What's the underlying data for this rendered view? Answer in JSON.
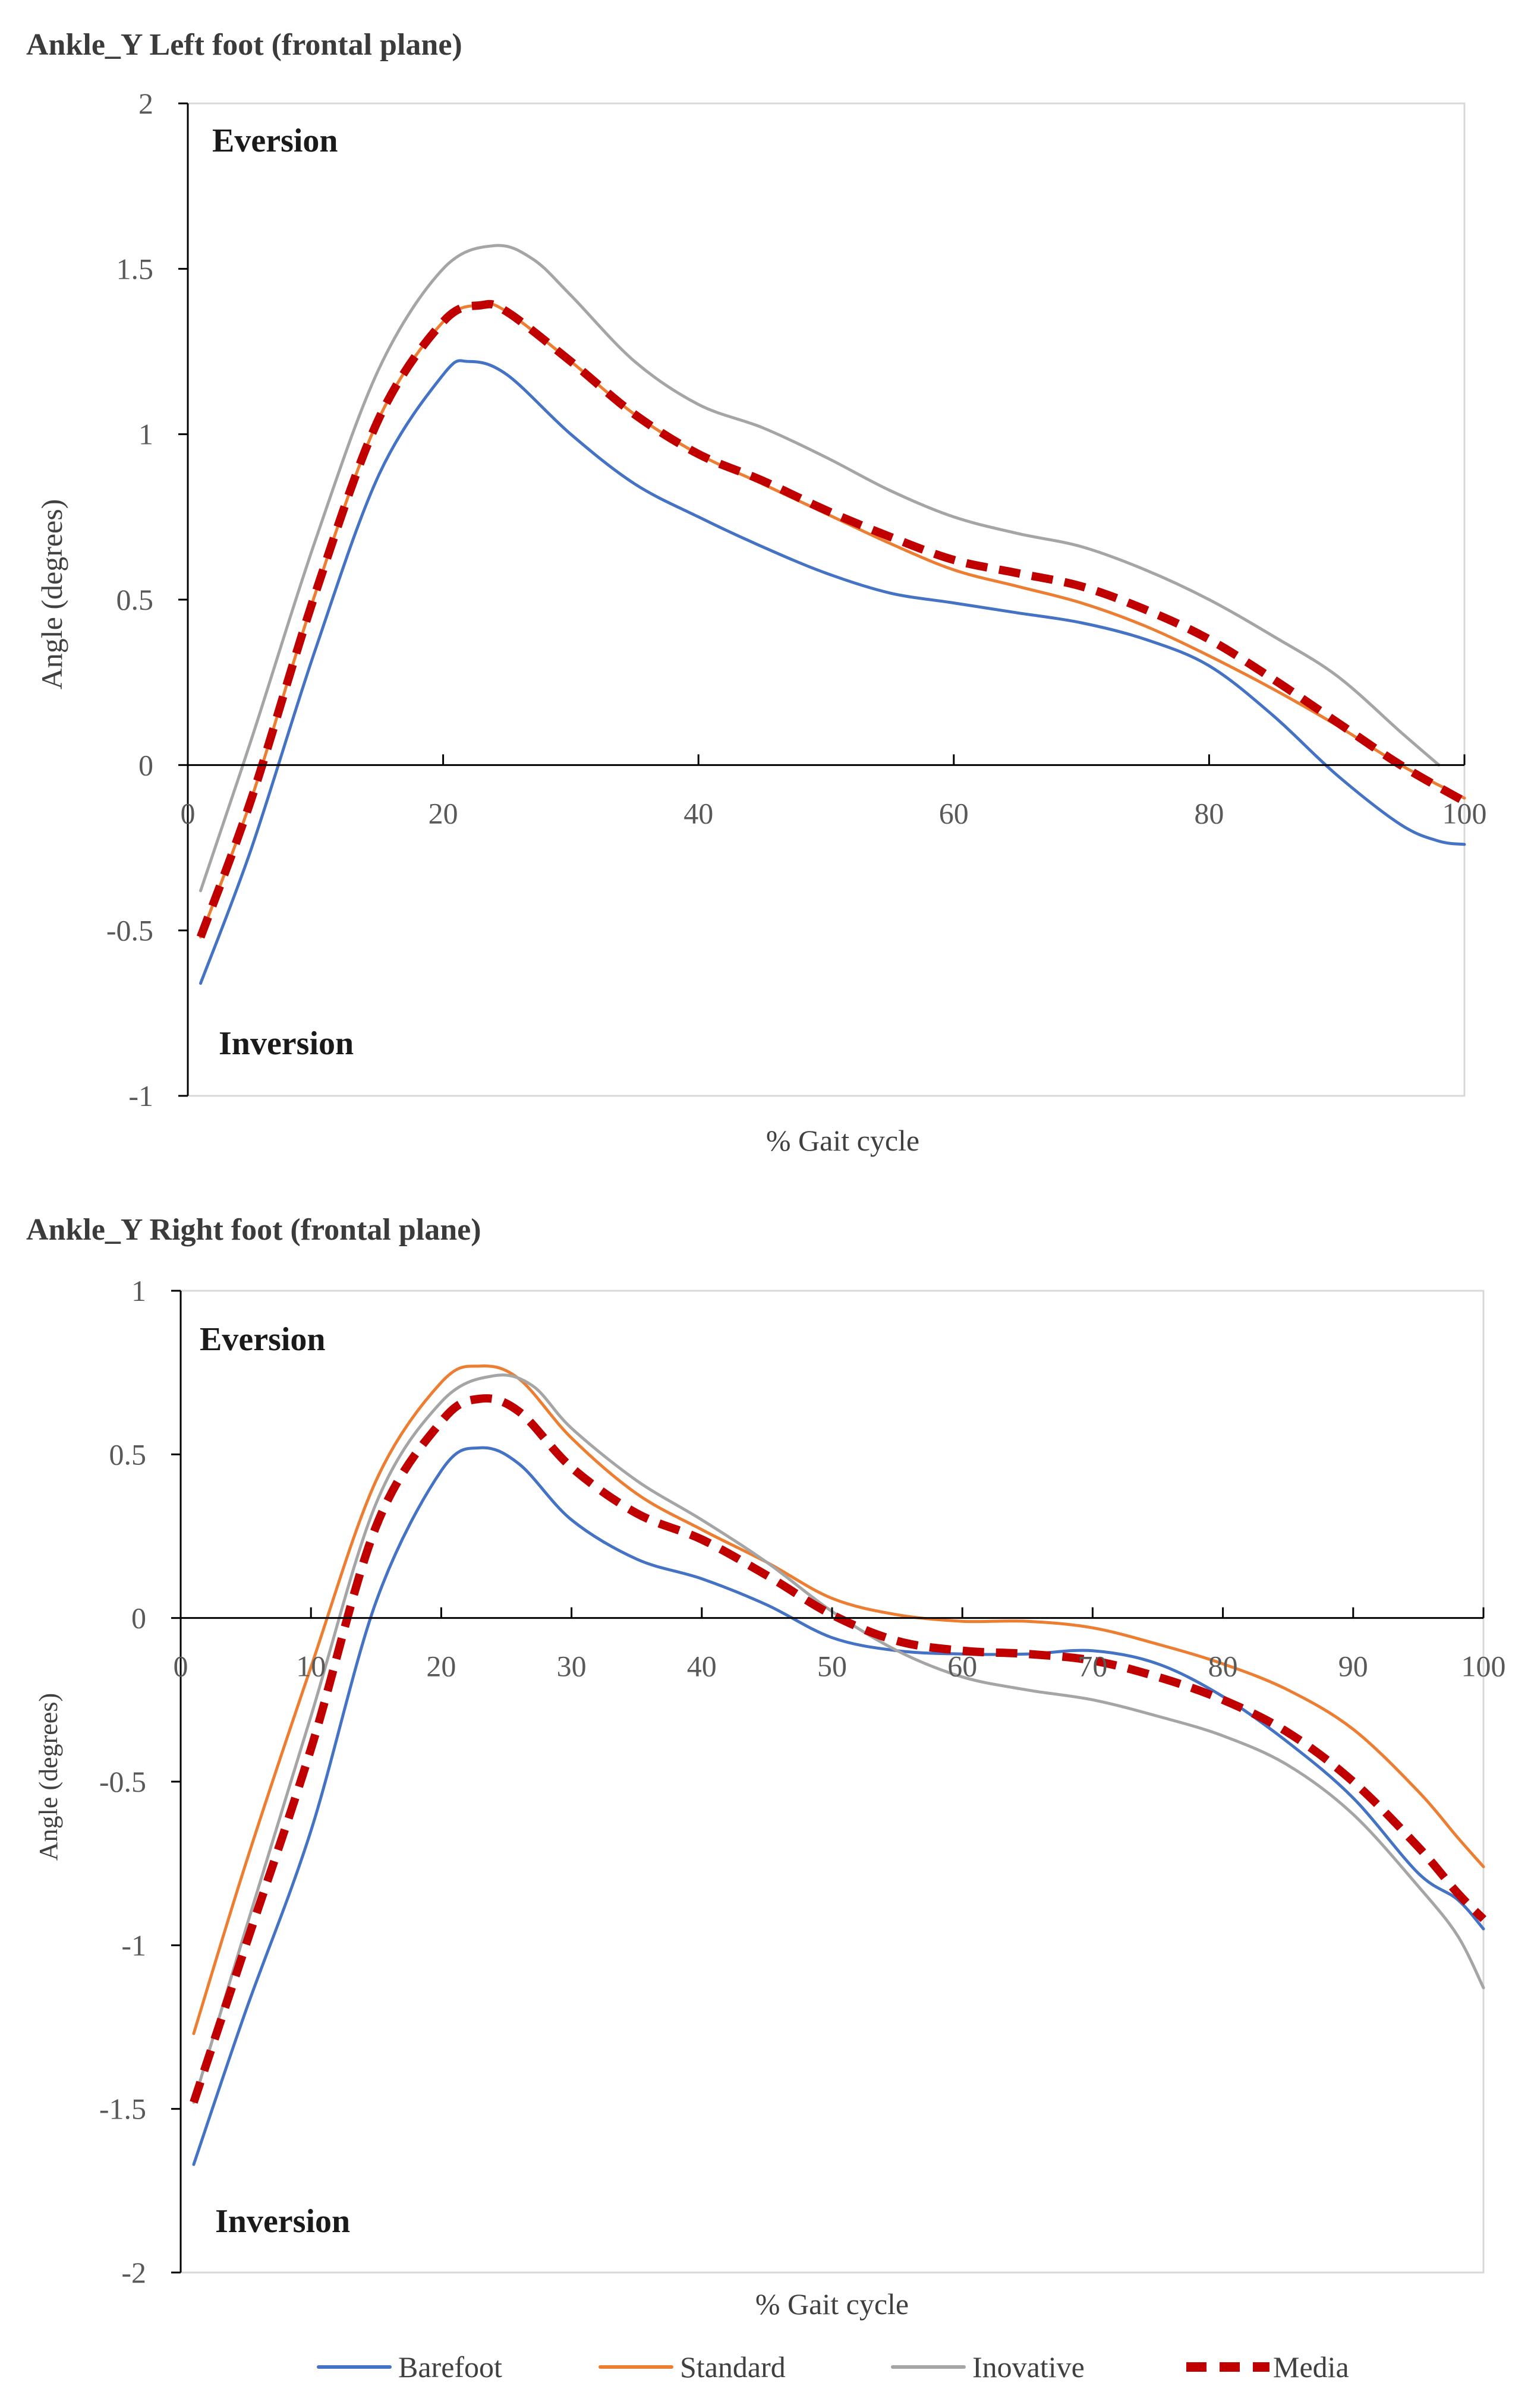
{
  "chart_data": [
    {
      "type": "line",
      "title": "Ankle_Y Left foot (frontal plane)",
      "xlabel": "% Gait cycle",
      "ylabel": "Angle (degrees)",
      "xlim": [
        0,
        100
      ],
      "ylim": [
        -1,
        2
      ],
      "xticks": [
        0,
        20,
        40,
        60,
        80,
        100
      ],
      "yticks": [
        2,
        1.5,
        1,
        0.5,
        0,
        -0.5,
        -1
      ],
      "grid": false,
      "annotations": [
        {
          "text": "Eversion",
          "x": 2,
          "y": 1.9
        },
        {
          "text": "Inversion",
          "x": 2,
          "y": -0.84
        }
      ],
      "series": [
        {
          "name": "Barefoot",
          "color": "#4472c4",
          "dashed": false,
          "x": [
            1,
            5,
            10,
            15,
            20,
            22,
            25,
            30,
            35,
            40,
            45,
            50,
            55,
            60,
            65,
            70,
            75,
            80,
            85,
            90,
            95,
            98,
            100
          ],
          "y": [
            -0.66,
            -0.25,
            0.35,
            0.88,
            1.18,
            1.22,
            1.18,
            1.0,
            0.85,
            0.75,
            0.66,
            0.58,
            0.52,
            0.49,
            0.46,
            0.43,
            0.38,
            0.3,
            0.15,
            -0.03,
            -0.18,
            -0.23,
            -0.24
          ]
        },
        {
          "name": "Standard",
          "color": "#ed7d31",
          "dashed": false,
          "x": [
            1,
            5,
            10,
            15,
            20,
            23,
            25,
            30,
            35,
            40,
            45,
            50,
            55,
            60,
            65,
            70,
            75,
            80,
            85,
            90,
            95,
            100
          ],
          "y": [
            -0.52,
            -0.1,
            0.52,
            1.05,
            1.34,
            1.39,
            1.37,
            1.22,
            1.06,
            0.94,
            0.85,
            0.76,
            0.67,
            0.59,
            0.54,
            0.49,
            0.42,
            0.33,
            0.23,
            0.12,
            0.0,
            -0.1
          ]
        },
        {
          "name": "Inovative",
          "color": "#a5a5a5",
          "dashed": false,
          "x": [
            1,
            5,
            10,
            15,
            20,
            24,
            27,
            30,
            35,
            40,
            45,
            50,
            55,
            60,
            65,
            70,
            75,
            80,
            85,
            90,
            95,
            98
          ],
          "y": [
            -0.38,
            0.08,
            0.68,
            1.2,
            1.5,
            1.57,
            1.53,
            1.42,
            1.22,
            1.09,
            1.02,
            0.93,
            0.83,
            0.75,
            0.7,
            0.66,
            0.59,
            0.5,
            0.39,
            0.27,
            0.1,
            0.0
          ]
        },
        {
          "name": "Media",
          "color": "#c00000",
          "dashed": true,
          "x": [
            1,
            5,
            10,
            15,
            20,
            23,
            25,
            30,
            35,
            40,
            45,
            50,
            55,
            60,
            65,
            70,
            75,
            80,
            85,
            90,
            95,
            100
          ],
          "y": [
            -0.52,
            -0.1,
            0.52,
            1.05,
            1.34,
            1.39,
            1.37,
            1.22,
            1.06,
            0.94,
            0.86,
            0.77,
            0.69,
            0.62,
            0.58,
            0.54,
            0.47,
            0.38,
            0.26,
            0.13,
            0.0,
            -0.11
          ]
        }
      ]
    },
    {
      "type": "line",
      "title": "Ankle_Y Right foot (frontal plane)",
      "xlabel": "% Gait cycle",
      "ylabel": "Angle (degrees)",
      "xlim": [
        0,
        100
      ],
      "ylim": [
        -2,
        1
      ],
      "xticks": [
        0,
        10,
        20,
        30,
        40,
        50,
        60,
        70,
        80,
        90,
        100
      ],
      "yticks": [
        1,
        0.5,
        0,
        -0.5,
        -1,
        -1.5,
        -2
      ],
      "grid": false,
      "annotations": [
        {
          "text": "Eversion",
          "x": 1.5,
          "y": 0.82
        },
        {
          "text": "Inversion",
          "x": 1.5,
          "y": -1.85
        }
      ],
      "series": [
        {
          "name": "Barefoot",
          "color": "#4472c4",
          "dashed": false,
          "x": [
            1,
            5,
            10,
            15,
            20,
            23,
            26,
            30,
            35,
            40,
            45,
            50,
            55,
            60,
            65,
            70,
            75,
            80,
            85,
            90,
            95,
            98,
            100
          ],
          "y": [
            -1.67,
            -1.2,
            -0.65,
            0.05,
            0.45,
            0.52,
            0.47,
            0.3,
            0.18,
            0.12,
            0.04,
            -0.06,
            -0.1,
            -0.11,
            -0.11,
            -0.1,
            -0.14,
            -0.24,
            -0.38,
            -0.55,
            -0.78,
            -0.86,
            -0.95
          ]
        },
        {
          "name": "Standard",
          "color": "#ed7d31",
          "dashed": false,
          "x": [
            1,
            5,
            10,
            15,
            20,
            23,
            26,
            30,
            35,
            40,
            45,
            50,
            55,
            60,
            65,
            70,
            75,
            80,
            85,
            90,
            95,
            98,
            100
          ],
          "y": [
            -1.27,
            -0.75,
            -0.15,
            0.42,
            0.72,
            0.77,
            0.73,
            0.55,
            0.38,
            0.27,
            0.17,
            0.06,
            0.01,
            -0.01,
            -0.01,
            -0.03,
            -0.08,
            -0.14,
            -0.22,
            -0.34,
            -0.53,
            -0.67,
            -0.76
          ]
        },
        {
          "name": "Inovative",
          "color": "#a5a5a5",
          "dashed": false,
          "x": [
            1,
            5,
            10,
            15,
            20,
            24,
            27,
            30,
            35,
            40,
            45,
            50,
            55,
            60,
            65,
            70,
            75,
            80,
            85,
            90,
            95,
            98,
            100
          ],
          "y": [
            -1.48,
            -0.95,
            -0.3,
            0.35,
            0.66,
            0.74,
            0.71,
            0.58,
            0.42,
            0.3,
            0.17,
            0.02,
            -0.1,
            -0.18,
            -0.22,
            -0.25,
            -0.3,
            -0.36,
            -0.45,
            -0.6,
            -0.82,
            -0.97,
            -1.13
          ]
        },
        {
          "name": "Media",
          "color": "#c00000",
          "dashed": true,
          "x": [
            1,
            5,
            10,
            15,
            20,
            23,
            26,
            30,
            35,
            40,
            45,
            50,
            55,
            60,
            65,
            70,
            75,
            80,
            85,
            90,
            95,
            98,
            100
          ],
          "y": [
            -1.48,
            -1.0,
            -0.4,
            0.28,
            0.6,
            0.67,
            0.63,
            0.46,
            0.32,
            0.24,
            0.13,
            0.01,
            -0.07,
            -0.1,
            -0.11,
            -0.13,
            -0.18,
            -0.25,
            -0.35,
            -0.5,
            -0.7,
            -0.84,
            -0.92
          ]
        }
      ]
    }
  ],
  "legend": {
    "position": "bottom",
    "items": [
      {
        "name": "Barefoot",
        "color": "#4472c4",
        "dashed": false
      },
      {
        "name": "Standard",
        "color": "#ed7d31",
        "dashed": false
      },
      {
        "name": "Inovative",
        "color": "#a5a5a5",
        "dashed": false
      },
      {
        "name": "Media",
        "color": "#c00000",
        "dashed": true
      }
    ]
  }
}
